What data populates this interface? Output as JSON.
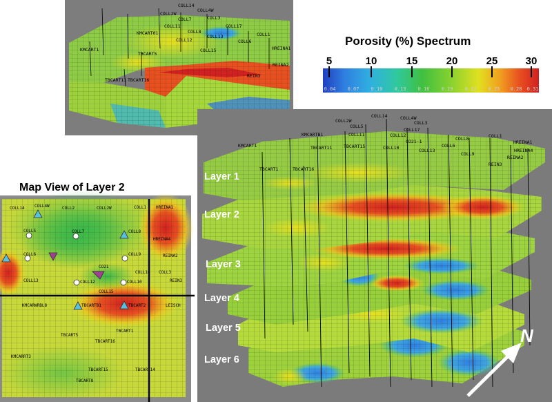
{
  "legend": {
    "title": "Porosity (%) Spectrum",
    "top_ticks": [
      "5",
      "10",
      "15",
      "20",
      "25",
      "30"
    ],
    "bottom_ticks": [
      "0.04",
      "0.07",
      "0.10",
      "0.13",
      "0.16",
      "0.19",
      "0.22",
      "0.25",
      "0.28",
      "0.31"
    ],
    "colors": [
      "#2040c0",
      "#2f7fe0",
      "#30b0e0",
      "#30c8a0",
      "#40c040",
      "#80d030",
      "#e0e020",
      "#f0a020",
      "#e85020",
      "#d02020"
    ]
  },
  "map_view": {
    "title": "Map View of Layer 2",
    "wells": [
      "COLL14",
      "COLL4W",
      "COLL2",
      "COLL2W",
      "COLL1",
      "HREINA1",
      "COLL5",
      "COLL7",
      "COLL8",
      "HREINA4",
      "COLL6",
      "COLL9",
      "REINA2",
      "COLL3",
      "COLL13",
      "COLL16",
      "REIN3",
      "CO21",
      "COLL12",
      "COLL10",
      "COLL15",
      "TBCARTB1",
      "TBCART2",
      "LEISCH",
      "KMCARWRBL8",
      "TBCART1",
      "TBCART16",
      "TBCART5",
      "KMCARRT3",
      "TBCART15",
      "TBCART14",
      "TBCART8"
    ]
  },
  "layers_view": {
    "labels": [
      "Layer 1",
      "Layer 2",
      "Layer 3",
      "Layer 4",
      "Layer 5",
      "Layer 6"
    ],
    "wells": [
      "COLL14",
      "COLL4W",
      "COLL3",
      "COLL2W",
      "COLL5",
      "COLL17",
      "COLL1",
      "KMCARTB1",
      "COLL8",
      "HREINA1",
      "KMCART1",
      "TBCART11",
      "TBCART15",
      "COLL12",
      "COLL11",
      "COLL10",
      "COLL13",
      "COLL6",
      "COLL9",
      "REIN3",
      "REINA2",
      "HREINA4",
      "TBCART1",
      "TBCART16",
      "CO21-1"
    ],
    "north_label": "N"
  },
  "block_view": {
    "wells": [
      "COLL14",
      "COLL4W",
      "COLL2W",
      "COLL3",
      "COLL7",
      "COLL11",
      "COLL17",
      "COLL8",
      "COLL12",
      "COLL13",
      "COLL6",
      "COLL1",
      "KMCART01",
      "KMCART1",
      "TBCART5",
      "HREINA1",
      "REINA2",
      "COLL15",
      "REIN3",
      "TBCART11",
      "TBCART16"
    ]
  }
}
